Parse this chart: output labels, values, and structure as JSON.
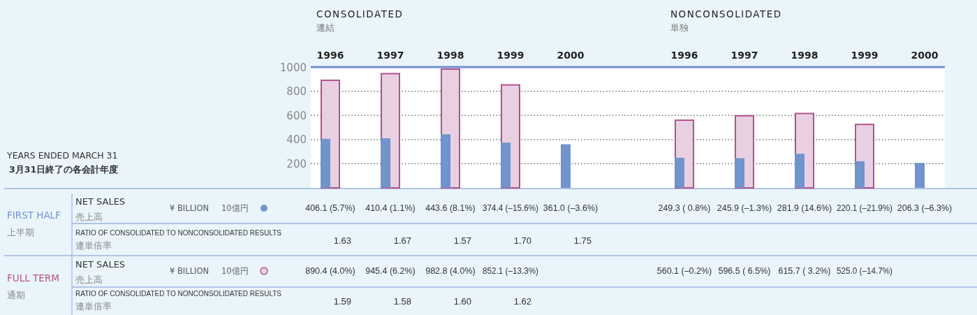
{
  "chart_data": [
    {
      "type": "bar",
      "title": "CONSOLIDATED",
      "subtitle": "連結",
      "categories": [
        "1996",
        "1997",
        "1998",
        "1999",
        "2000"
      ],
      "ylim": [
        0,
        1000
      ],
      "yticks": [
        200,
        400,
        600,
        800,
        1000
      ],
      "grid": "y",
      "series": [
        {
          "name": "FIRST HALF",
          "color": "#7094cc",
          "values": [
            406.1,
            410.4,
            443.6,
            374.4,
            361.0
          ],
          "value_labels": [
            "406.1 (5.7%)",
            "410.4 (1.1%)",
            "443.6 (8.1%)",
            "374.4 (–15.6%)",
            "361.0 (–3.6%)"
          ]
        },
        {
          "name": "FULL TERM",
          "color": "#e8d0e2",
          "values": [
            890.4,
            945.4,
            982.8,
            852.1,
            null
          ],
          "value_labels": [
            "890.4 (4.0%)",
            "945.4 (6.2%)",
            "982.8 (4.0%)",
            "852.1 (–13.3%)",
            null
          ]
        }
      ],
      "annotations": [
        "YEARS ENDED MARCH 31",
        "3月31日終了の各会計年度",
        "NET SALES",
        "売上高",
        "¥ BILLION",
        "10億円",
        "上半期",
        "RATIO OF CONSOLIDATED TO NONCONSOLIDATED RESULTS",
        "連単倍率",
        "通期",
        "1.63",
        "1.67",
        "1.57",
        "1.70",
        "1.75",
        "1.59",
        "1.58",
        "1.60",
        "1.62"
      ]
    },
    {
      "type": "bar",
      "title": "NONCONSOLIDATED",
      "subtitle": "単独",
      "categories": [
        "1996",
        "1997",
        "1998",
        "1999",
        "2000"
      ],
      "ylim": [
        0,
        1000
      ],
      "yticks": [
        200,
        400,
        600,
        800,
        1000
      ],
      "grid": "y",
      "tick_labels": "x",
      "series": [
        {
          "color": "#7094cc",
          "values": [
            249.3,
            245.9,
            281.9,
            220.1,
            206.3
          ],
          "value_labels": [
            "249.3 ( 0.8%)",
            "245.9 (–1.3%)",
            "281.9 (14.6%)",
            "220.1 (–21.9%)",
            "206.3 (–6.3%)"
          ]
        },
        {
          "color": "#e8d0e2",
          "values": [
            560.1,
            596.5,
            615.7,
            525.0,
            null
          ],
          "value_labels": [
            "560.1 (–0.2%)",
            "596.5 ( 6.5%)",
            "615.7 ( 3.2%)",
            "525.0 (–14.7%)",
            null
          ]
        }
      ]
    }
  ]
}
